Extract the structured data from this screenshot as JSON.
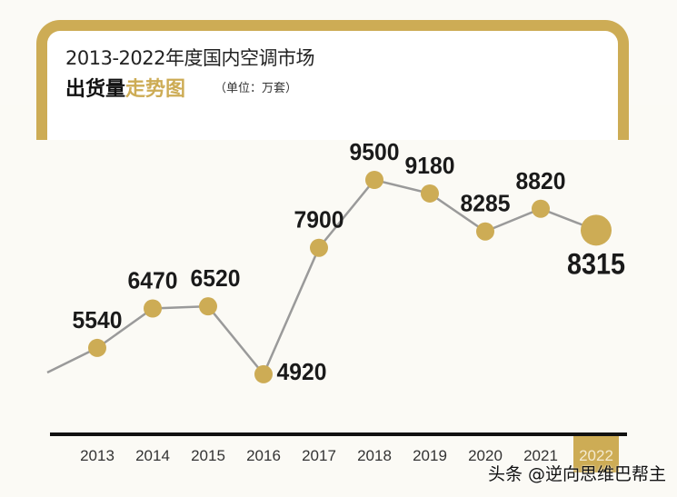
{
  "chart_data": {
    "type": "line",
    "title": "2013-2022年度国内空调市场",
    "subtitle_black": "出货量",
    "subtitle_gold": "走势图",
    "unit": "（单位：万套）",
    "categories": [
      "2013",
      "2014",
      "2015",
      "2016",
      "2017",
      "2018",
      "2019",
      "2020",
      "2021",
      "2022"
    ],
    "values": [
      5540,
      6470,
      6520,
      4920,
      7900,
      9500,
      9180,
      8285,
      8820,
      8315
    ],
    "data_labels": [
      "5540",
      "6470",
      "6520",
      "4920",
      "7900",
      "9500",
      "9180",
      "8285",
      "8820",
      "8315"
    ],
    "highlight_category": "2022",
    "grid": false,
    "colors": {
      "accent": "#cdac55",
      "line": "#9a9a9a",
      "axis": "#111111"
    }
  },
  "watermark": "头条 @逆向思维巴帮主"
}
